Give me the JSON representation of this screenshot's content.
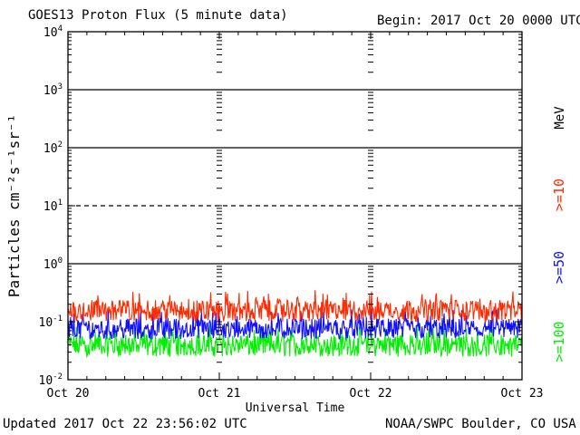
{
  "header": {
    "title": "GOES13 Proton Flux (5 minute data)",
    "begin": "Begin: 2017 Oct 20 0000 UTC"
  },
  "footer": {
    "updated": "Updated 2017 Oct 22 23:56:02 UTC",
    "credit": "NOAA/SWPC Boulder, CO USA"
  },
  "chart_data": {
    "type": "line",
    "title": "GOES13 Proton Flux (5 minute data)",
    "xlabel": "Universal Time",
    "ylabel": "Particles cm⁻²s⁻¹sr⁻¹",
    "y_scale": "log",
    "ylim": [
      0.01,
      10000
    ],
    "xlim_days": [
      0,
      3
    ],
    "x_tick_labels": [
      "Oct 20",
      "Oct 21",
      "Oct 22",
      "Oct 23"
    ],
    "y_tick_labels": [
      {
        "base": "10",
        "exp": "-2"
      },
      {
        "base": "10",
        "exp": "-1"
      },
      {
        "base": "10",
        "exp": "0"
      },
      {
        "base": "10",
        "exp": "1"
      },
      {
        "base": "10",
        "exp": "2"
      },
      {
        "base": "10",
        "exp": "3"
      },
      {
        "base": "10",
        "exp": "4"
      }
    ],
    "unit_label": "MeV",
    "threshold_lines": [
      1,
      100,
      1000
    ],
    "dashed_line": 10,
    "series": [
      {
        "name": ">=10",
        "color": "#ff2a00",
        "typical_range": [
          0.1,
          0.35
        ],
        "median": 0.16
      },
      {
        "name": ">=50",
        "color": "#1010ff",
        "typical_range": [
          0.05,
          0.17
        ],
        "median": 0.075
      },
      {
        "name": ">=100",
        "color": "#00ee00",
        "typical_range": [
          0.025,
          0.09
        ],
        "median": 0.04
      }
    ]
  }
}
